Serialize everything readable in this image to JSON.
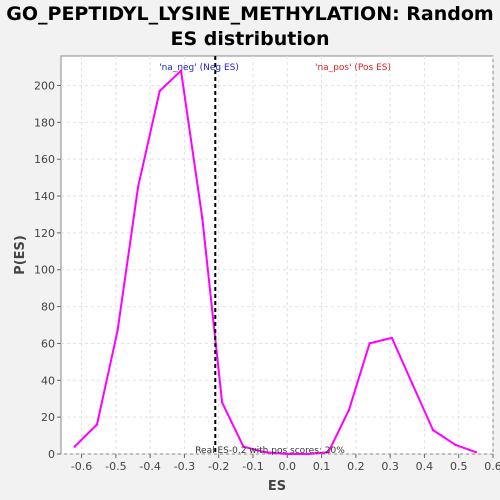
{
  "chart_data": {
    "type": "line",
    "title_line1": "GO_PEPTIDYL_LYSINE_METHYLATION: Random",
    "title_line2": "ES distribution",
    "xlabel": "ES",
    "ylabel": "P(ES)",
    "xlim": [
      -0.66,
      0.6
    ],
    "ylim": [
      0,
      216
    ],
    "x_ticks": [
      -0.6,
      -0.5,
      -0.4,
      -0.3,
      -0.2,
      -0.1,
      0.0,
      0.1,
      0.2,
      0.3,
      0.4,
      0.5,
      0.6
    ],
    "x_tick_labels": [
      "-0.6",
      "-0.5",
      "-0.4",
      "-0.3",
      "-0.2",
      "-0.1",
      "0.0",
      "0.1",
      "0.2",
      "0.3",
      "0.4",
      "0.5",
      "0.6"
    ],
    "y_ticks": [
      0,
      20,
      40,
      60,
      80,
      100,
      120,
      140,
      160,
      180,
      200
    ],
    "y_tick_labels": [
      "0",
      "20",
      "40",
      "60",
      "80",
      "100",
      "120",
      "140",
      "160",
      "180",
      "200"
    ],
    "grid": true,
    "series": [
      {
        "color": "#ff00ff",
        "x": [
          -0.62,
          -0.555,
          -0.495,
          -0.435,
          -0.372,
          -0.31,
          -0.248,
          -0.19,
          -0.128,
          -0.065,
          0.0,
          0.062,
          0.12,
          0.18,
          0.24,
          0.305,
          0.365,
          0.425,
          0.49,
          0.55
        ],
        "y": [
          4,
          16,
          67,
          145,
          197,
          208,
          128,
          28,
          4,
          1,
          0,
          0,
          1,
          24,
          60,
          63,
          38,
          13,
          5,
          1
        ]
      }
    ],
    "real_es_line": {
      "x": -0.21,
      "color": "#000000"
    },
    "annotations": {
      "neg": {
        "text": "'na_neg' (Neg ES)",
        "color": "#2222cc"
      },
      "pos": {
        "text": "'na_pos' (Pos ES)",
        "color": "#dd2222"
      },
      "bottom": {
        "text": "Real ES-0.2 with pos scores: 20%",
        "color": "#333333"
      }
    }
  }
}
